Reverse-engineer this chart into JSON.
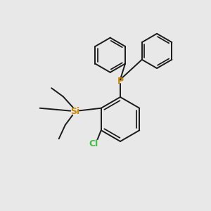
{
  "bg_color": "#e8e8e8",
  "bond_color": "#1a1a1a",
  "P_color": "#cc8800",
  "Si_color": "#cc8800",
  "Cl_color": "#44bb44",
  "bond_width": 1.4,
  "figsize": [
    3.0,
    3.0
  ],
  "dpi": 100,
  "xlim": [
    0,
    10
  ],
  "ylim": [
    0,
    10
  ]
}
